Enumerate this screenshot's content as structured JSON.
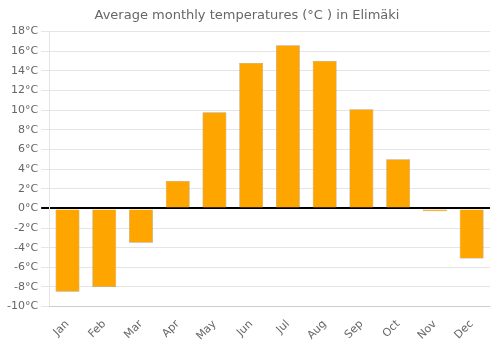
{
  "chart_data": {
    "type": "bar",
    "title": "Average monthly temperatures (°C ) in Elimäki",
    "categories": [
      "Jan",
      "Feb",
      "Mar",
      "Apr",
      "May",
      "Jun",
      "Jul",
      "Aug",
      "Sep",
      "Oct",
      "Nov",
      "Dec"
    ],
    "values": [
      -8.5,
      -8.0,
      -3.5,
      2.8,
      9.8,
      14.8,
      16.6,
      15.0,
      10.1,
      5.0,
      -0.3,
      -5.1
    ],
    "color": "#FFA500",
    "ylim": [
      -10,
      18
    ],
    "yticks": [
      {
        "value": -10,
        "label": "-10°C"
      },
      {
        "value": -8,
        "label": "-8°C"
      },
      {
        "value": -6,
        "label": "-6°C"
      },
      {
        "value": -4,
        "label": "-4°C"
      },
      {
        "value": -2,
        "label": "-2°C"
      },
      {
        "value": 0,
        "label": "0°C"
      },
      {
        "value": 2,
        "label": "2°C"
      },
      {
        "value": 4,
        "label": "4°C"
      },
      {
        "value": 6,
        "label": "6°C"
      },
      {
        "value": 8,
        "label": "8°C"
      },
      {
        "value": 10,
        "label": "10°C"
      },
      {
        "value": 12,
        "label": "12°C"
      },
      {
        "value": 14,
        "label": "14°C"
      },
      {
        "value": 16,
        "label": "16°C"
      },
      {
        "value": 18,
        "label": "18°C"
      }
    ],
    "grid": true
  }
}
